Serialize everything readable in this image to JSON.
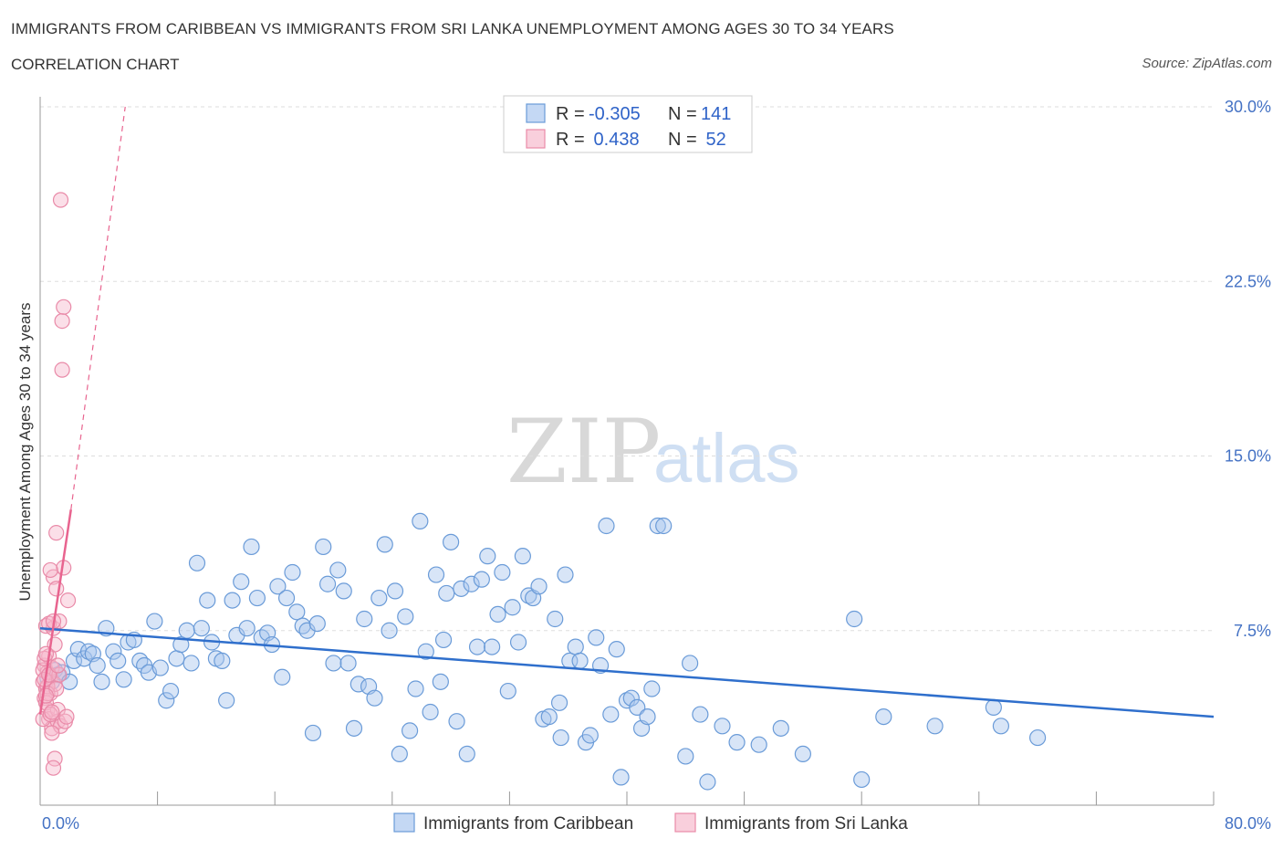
{
  "title": "IMMIGRANTS FROM CARIBBEAN VS IMMIGRANTS FROM SRI LANKA UNEMPLOYMENT AMONG AGES 30 TO 34 YEARS",
  "subtitle": "CORRELATION CHART",
  "source": "Source: ZipAtlas.com",
  "watermark": {
    "zip": "ZIP",
    "atlas": "atlas"
  },
  "colors": {
    "caribbean_fill": "#a9c6ee",
    "caribbean_stroke": "#6a9bd8",
    "caribbean_line": "#2f6fcc",
    "srilanka_fill": "#f6b8cb",
    "srilanka_stroke": "#e98aa8",
    "srilanka_line": "#e8648f",
    "axis_text": "#4472c4",
    "grid": "#dddddd"
  },
  "legend": {
    "rows": [
      {
        "r_label": "R =",
        "r_value": "-0.305",
        "n_label": "N =",
        "n_value": "141"
      },
      {
        "r_label": "R =",
        "r_value": " 0.438",
        "n_label": "N =",
        "n_value": " 52"
      }
    ]
  },
  "chart_data": {
    "type": "scatter",
    "title": "IMMIGRANTS FROM CARIBBEAN VS IMMIGRANTS FROM SRI LANKA UNEMPLOYMENT AMONG AGES 30 TO 34 YEARS",
    "xlabel": "",
    "ylabel": "Unemployment Among Ages 30 to 34 years",
    "xlim": [
      0,
      80
    ],
    "ylim": [
      0,
      30
    ],
    "x_tick_labels": [
      "0.0%",
      "80.0%"
    ],
    "y_ticks": [
      7.5,
      15.0,
      22.5,
      30.0
    ],
    "y_tick_labels": [
      "7.5%",
      "15.0%",
      "22.5%",
      "30.0%"
    ],
    "grid": true,
    "legend_position": "top-center",
    "series": [
      {
        "name": "Immigrants from Caribbean",
        "r": -0.305,
        "n": 141,
        "trend": {
          "x0": 0,
          "y0": 7.6,
          "x1": 80,
          "y1": 3.8
        },
        "points": [
          [
            0.5,
            5.5
          ],
          [
            0.8,
            5.3
          ],
          [
            1.0,
            5.8
          ],
          [
            1.2,
            5.6
          ],
          [
            1.5,
            5.7
          ],
          [
            2.0,
            5.3
          ],
          [
            2.3,
            6.2
          ],
          [
            2.6,
            6.7
          ],
          [
            3.0,
            6.3
          ],
          [
            3.3,
            6.6
          ],
          [
            3.6,
            6.5
          ],
          [
            3.9,
            6.0
          ],
          [
            4.2,
            5.3
          ],
          [
            4.5,
            7.6
          ],
          [
            5.0,
            6.6
          ],
          [
            5.3,
            6.2
          ],
          [
            5.7,
            5.4
          ],
          [
            6.0,
            7.0
          ],
          [
            6.4,
            7.1
          ],
          [
            6.8,
            6.2
          ],
          [
            7.1,
            6.0
          ],
          [
            7.4,
            5.7
          ],
          [
            7.8,
            7.9
          ],
          [
            8.2,
            5.9
          ],
          [
            8.6,
            4.5
          ],
          [
            8.9,
            4.9
          ],
          [
            9.3,
            6.3
          ],
          [
            9.6,
            6.9
          ],
          [
            10.0,
            7.5
          ],
          [
            10.3,
            6.1
          ],
          [
            10.7,
            10.4
          ],
          [
            11.0,
            7.6
          ],
          [
            11.4,
            8.8
          ],
          [
            11.7,
            7.0
          ],
          [
            12.0,
            6.3
          ],
          [
            12.4,
            6.2
          ],
          [
            12.7,
            4.5
          ],
          [
            13.1,
            8.8
          ],
          [
            13.4,
            7.3
          ],
          [
            13.7,
            9.6
          ],
          [
            14.1,
            7.6
          ],
          [
            14.4,
            11.1
          ],
          [
            14.8,
            8.9
          ],
          [
            15.1,
            7.2
          ],
          [
            15.5,
            7.4
          ],
          [
            15.8,
            6.9
          ],
          [
            16.2,
            9.4
          ],
          [
            16.5,
            5.5
          ],
          [
            16.8,
            8.9
          ],
          [
            17.2,
            10.0
          ],
          [
            17.5,
            8.3
          ],
          [
            17.9,
            7.7
          ],
          [
            18.2,
            7.5
          ],
          [
            18.6,
            3.1
          ],
          [
            18.9,
            7.8
          ],
          [
            19.3,
            11.1
          ],
          [
            19.6,
            9.5
          ],
          [
            20.0,
            6.1
          ],
          [
            20.3,
            10.1
          ],
          [
            20.7,
            9.2
          ],
          [
            21.0,
            6.1
          ],
          [
            21.4,
            3.3
          ],
          [
            21.7,
            5.2
          ],
          [
            22.1,
            8.0
          ],
          [
            22.4,
            5.1
          ],
          [
            22.8,
            4.6
          ],
          [
            23.1,
            8.9
          ],
          [
            23.5,
            11.2
          ],
          [
            23.8,
            7.5
          ],
          [
            24.2,
            9.2
          ],
          [
            24.5,
            2.2
          ],
          [
            24.9,
            8.1
          ],
          [
            25.2,
            3.2
          ],
          [
            25.6,
            5.0
          ],
          [
            25.9,
            12.2
          ],
          [
            26.3,
            6.6
          ],
          [
            26.6,
            4.0
          ],
          [
            27.0,
            9.9
          ],
          [
            27.3,
            5.3
          ],
          [
            27.7,
            9.1
          ],
          [
            28.0,
            11.3
          ],
          [
            28.4,
            3.6
          ],
          [
            28.7,
            9.3
          ],
          [
            29.1,
            2.2
          ],
          [
            29.4,
            9.5
          ],
          [
            29.8,
            6.8
          ],
          [
            30.1,
            9.7
          ],
          [
            30.5,
            10.7
          ],
          [
            30.8,
            6.8
          ],
          [
            31.2,
            8.2
          ],
          [
            31.5,
            10.0
          ],
          [
            31.9,
            4.9
          ],
          [
            32.2,
            8.5
          ],
          [
            32.6,
            7.0
          ],
          [
            32.9,
            10.7
          ],
          [
            33.3,
            9.0
          ],
          [
            33.6,
            8.9
          ],
          [
            34.0,
            9.4
          ],
          [
            34.3,
            3.7
          ],
          [
            34.7,
            3.8
          ],
          [
            35.1,
            8.0
          ],
          [
            35.4,
            4.4
          ],
          [
            35.8,
            9.9
          ],
          [
            36.1,
            6.2
          ],
          [
            36.5,
            6.8
          ],
          [
            36.8,
            6.2
          ],
          [
            37.2,
            2.7
          ],
          [
            37.5,
            3.0
          ],
          [
            37.9,
            7.2
          ],
          [
            38.2,
            6.0
          ],
          [
            38.6,
            12.0
          ],
          [
            38.9,
            3.9
          ],
          [
            39.3,
            6.7
          ],
          [
            39.6,
            1.2
          ],
          [
            40.0,
            4.5
          ],
          [
            40.3,
            4.6
          ],
          [
            40.7,
            4.2
          ],
          [
            41.0,
            3.3
          ],
          [
            41.4,
            3.8
          ],
          [
            41.7,
            5.0
          ],
          [
            42.1,
            12.0
          ],
          [
            44.0,
            2.1
          ],
          [
            44.3,
            6.1
          ],
          [
            45.0,
            3.9
          ],
          [
            45.5,
            1.0
          ],
          [
            46.5,
            3.4
          ],
          [
            47.5,
            2.7
          ],
          [
            49.0,
            2.6
          ],
          [
            50.5,
            3.3
          ],
          [
            52.0,
            2.2
          ],
          [
            55.5,
            8.0
          ],
          [
            56.0,
            1.1
          ],
          [
            57.5,
            3.8
          ],
          [
            61.0,
            3.4
          ],
          [
            65.0,
            4.2
          ],
          [
            65.5,
            3.4
          ],
          [
            68.0,
            2.9
          ],
          [
            42.5,
            12.0
          ],
          [
            27.5,
            7.1
          ],
          [
            35.5,
            2.9
          ]
        ]
      },
      {
        "name": "Immigrants from Sri Lanka",
        "r": 0.438,
        "n": 52,
        "trend_solid": {
          "x0": 0,
          "y0": 3.9,
          "x1": 2.1,
          "y1": 12.7
        },
        "trend_dashed": {
          "x0": 2.1,
          "y0": 12.7,
          "x1": 5.8,
          "y1": 30.0
        },
        "points": [
          [
            0.2,
            5.3
          ],
          [
            0.3,
            4.6
          ],
          [
            0.3,
            6.0
          ],
          [
            0.4,
            5.0
          ],
          [
            0.4,
            7.7
          ],
          [
            0.5,
            5.7
          ],
          [
            0.5,
            4.1
          ],
          [
            0.6,
            3.7
          ],
          [
            0.6,
            6.4
          ],
          [
            0.7,
            5.5
          ],
          [
            0.7,
            4.8
          ],
          [
            0.8,
            3.3
          ],
          [
            0.8,
            5.9
          ],
          [
            0.9,
            9.8
          ],
          [
            0.9,
            7.6
          ],
          [
            1.0,
            2.0
          ],
          [
            1.0,
            5.2
          ],
          [
            1.1,
            11.7
          ],
          [
            1.1,
            9.3
          ],
          [
            1.2,
            4.1
          ],
          [
            1.2,
            3.6
          ],
          [
            1.3,
            5.6
          ],
          [
            1.3,
            7.9
          ],
          [
            1.4,
            3.4
          ],
          [
            1.4,
            26.0
          ],
          [
            1.5,
            18.7
          ],
          [
            1.5,
            20.8
          ],
          [
            1.6,
            21.4
          ],
          [
            1.6,
            10.2
          ],
          [
            1.7,
            3.6
          ],
          [
            1.8,
            3.8
          ],
          [
            1.9,
            8.8
          ],
          [
            0.2,
            5.8
          ],
          [
            0.3,
            6.3
          ],
          [
            0.4,
            4.4
          ],
          [
            0.5,
            5.1
          ],
          [
            0.6,
            7.8
          ],
          [
            0.7,
            10.1
          ],
          [
            0.8,
            3.1
          ],
          [
            0.9,
            1.6
          ],
          [
            1.0,
            6.9
          ],
          [
            0.2,
            3.7
          ],
          [
            0.3,
            5.4
          ],
          [
            0.4,
            6.5
          ],
          [
            0.5,
            4.8
          ],
          [
            0.6,
            5.6
          ],
          [
            0.7,
            3.9
          ],
          [
            0.8,
            4.0
          ],
          [
            1.1,
            5.0
          ],
          [
            1.2,
            6.0
          ],
          [
            0.4,
            4.7
          ],
          [
            0.9,
            7.9
          ]
        ]
      }
    ]
  },
  "bottom_legend": [
    "Immigrants from Caribbean",
    "Immigrants from Sri Lanka"
  ]
}
